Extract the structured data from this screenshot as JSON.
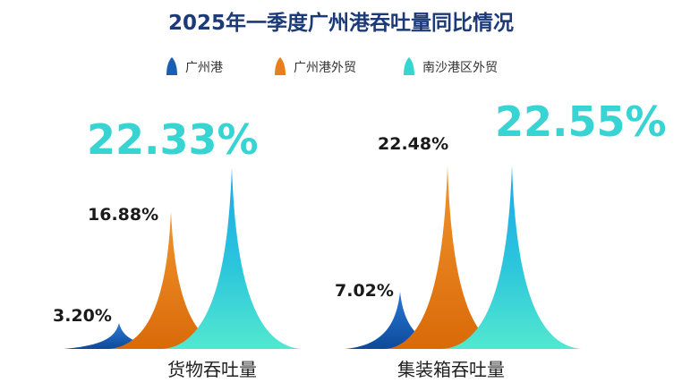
{
  "chart_data": {
    "type": "area",
    "title": "2025年一季度广州港吞吐量同比情况",
    "legend_position": "top",
    "series": [
      {
        "name": "广州港",
        "color": "#1a5fb4"
      },
      {
        "name": "广州港外贸",
        "color": "#e87f1c"
      },
      {
        "name": "南沙港区外贸",
        "color": "#36d6cf"
      }
    ],
    "categories": [
      "货物吞吐量",
      "集装箱吞吐量"
    ],
    "groups": [
      {
        "category": "货物吞吐量",
        "values": [
          3.2,
          16.88,
          22.33
        ],
        "labels": [
          "3.20%",
          "16.88%",
          "22.33%"
        ]
      },
      {
        "category": "集装箱吞吐量",
        "values": [
          7.02,
          22.48,
          22.55
        ],
        "labels": [
          "7.02%",
          "22.48%",
          "22.55%"
        ]
      }
    ],
    "unit": "%"
  }
}
